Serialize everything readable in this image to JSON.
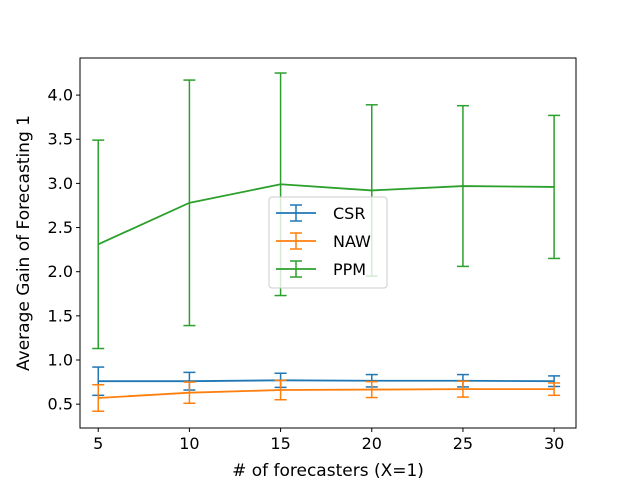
{
  "chart_data": {
    "type": "line",
    "title": "",
    "xlabel": "# of forecasters (X=1)",
    "ylabel": "Average Gain of Forecasting 1",
    "x": [
      5,
      10,
      15,
      20,
      25,
      30
    ],
    "xlim": [
      4,
      31.2
    ],
    "ylim": [
      0.23,
      4.42
    ],
    "xticks": [
      5,
      10,
      15,
      20,
      25,
      30
    ],
    "yticks": [
      0.5,
      1.0,
      1.5,
      2.0,
      2.5,
      3.0,
      3.5,
      4.0
    ],
    "ytick_labels": [
      "0.5",
      "1.0",
      "1.5",
      "2.0",
      "2.5",
      "3.0",
      "3.5",
      "4.0"
    ],
    "grid": false,
    "legend": "center",
    "series": [
      {
        "name": "CSR",
        "color": "#1f77b4",
        "values": [
          0.76,
          0.76,
          0.77,
          0.765,
          0.765,
          0.76
        ],
        "error": [
          0.16,
          0.1,
          0.08,
          0.07,
          0.07,
          0.06
        ]
      },
      {
        "name": "NAW",
        "color": "#ff7f0e",
        "values": [
          0.57,
          0.63,
          0.66,
          0.665,
          0.67,
          0.67
        ],
        "error": [
          0.15,
          0.12,
          0.11,
          0.09,
          0.09,
          0.07
        ]
      },
      {
        "name": "PPM",
        "color": "#2ca02c",
        "values": [
          2.31,
          2.78,
          2.99,
          2.92,
          2.97,
          2.96
        ],
        "error": [
          1.18,
          1.39,
          1.26,
          0.97,
          0.91,
          0.81
        ]
      }
    ]
  }
}
